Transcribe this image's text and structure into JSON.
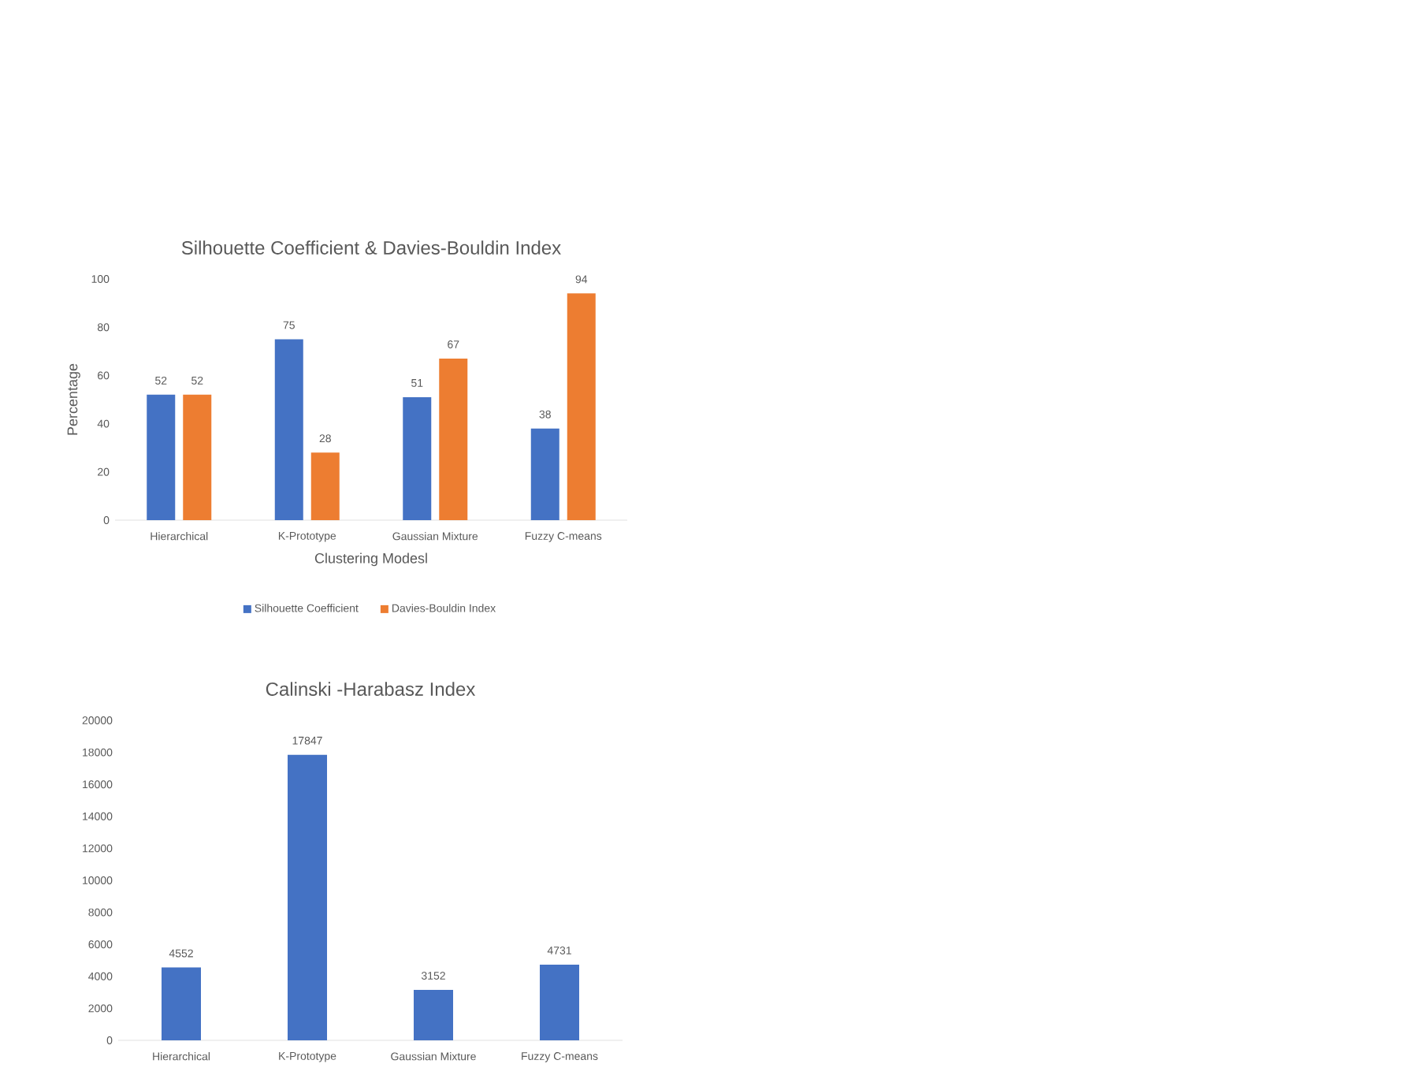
{
  "chart_data": [
    {
      "type": "bar",
      "title": "Silhouette Coefficient & Davies-Bouldin Index",
      "xlabel": "Clustering Modesl",
      "ylabel": "Percentage",
      "categories": [
        "Hierarchical",
        "K-Prototype",
        "Gaussian Mixture",
        "Fuzzy C-means"
      ],
      "series": [
        {
          "name": "Silhouette Coefficient",
          "color": "#4472c4",
          "values": [
            52,
            75,
            51,
            38
          ]
        },
        {
          "name": "Davies-Bouldin Index",
          "color": "#ed7d31",
          "values": [
            52,
            28,
            67,
            94
          ]
        }
      ],
      "ylim": [
        0,
        100
      ],
      "yticks": [
        0,
        20,
        40,
        60,
        80,
        100
      ],
      "data_labels": true,
      "legend": "bottom",
      "grid": false
    },
    {
      "type": "bar",
      "title": "Calinski -Harabasz Index",
      "categories": [
        "Hierarchical",
        "K-Prototype",
        "Gaussian Mixture",
        "Fuzzy C-means"
      ],
      "values": [
        4552,
        17847,
        3152,
        4731
      ],
      "color": "#4472c4",
      "ylim": [
        0,
        20000
      ],
      "yticks": [
        0,
        2000,
        4000,
        6000,
        8000,
        10000,
        12000,
        14000,
        16000,
        18000,
        20000
      ],
      "data_labels": true,
      "grid": false
    }
  ]
}
